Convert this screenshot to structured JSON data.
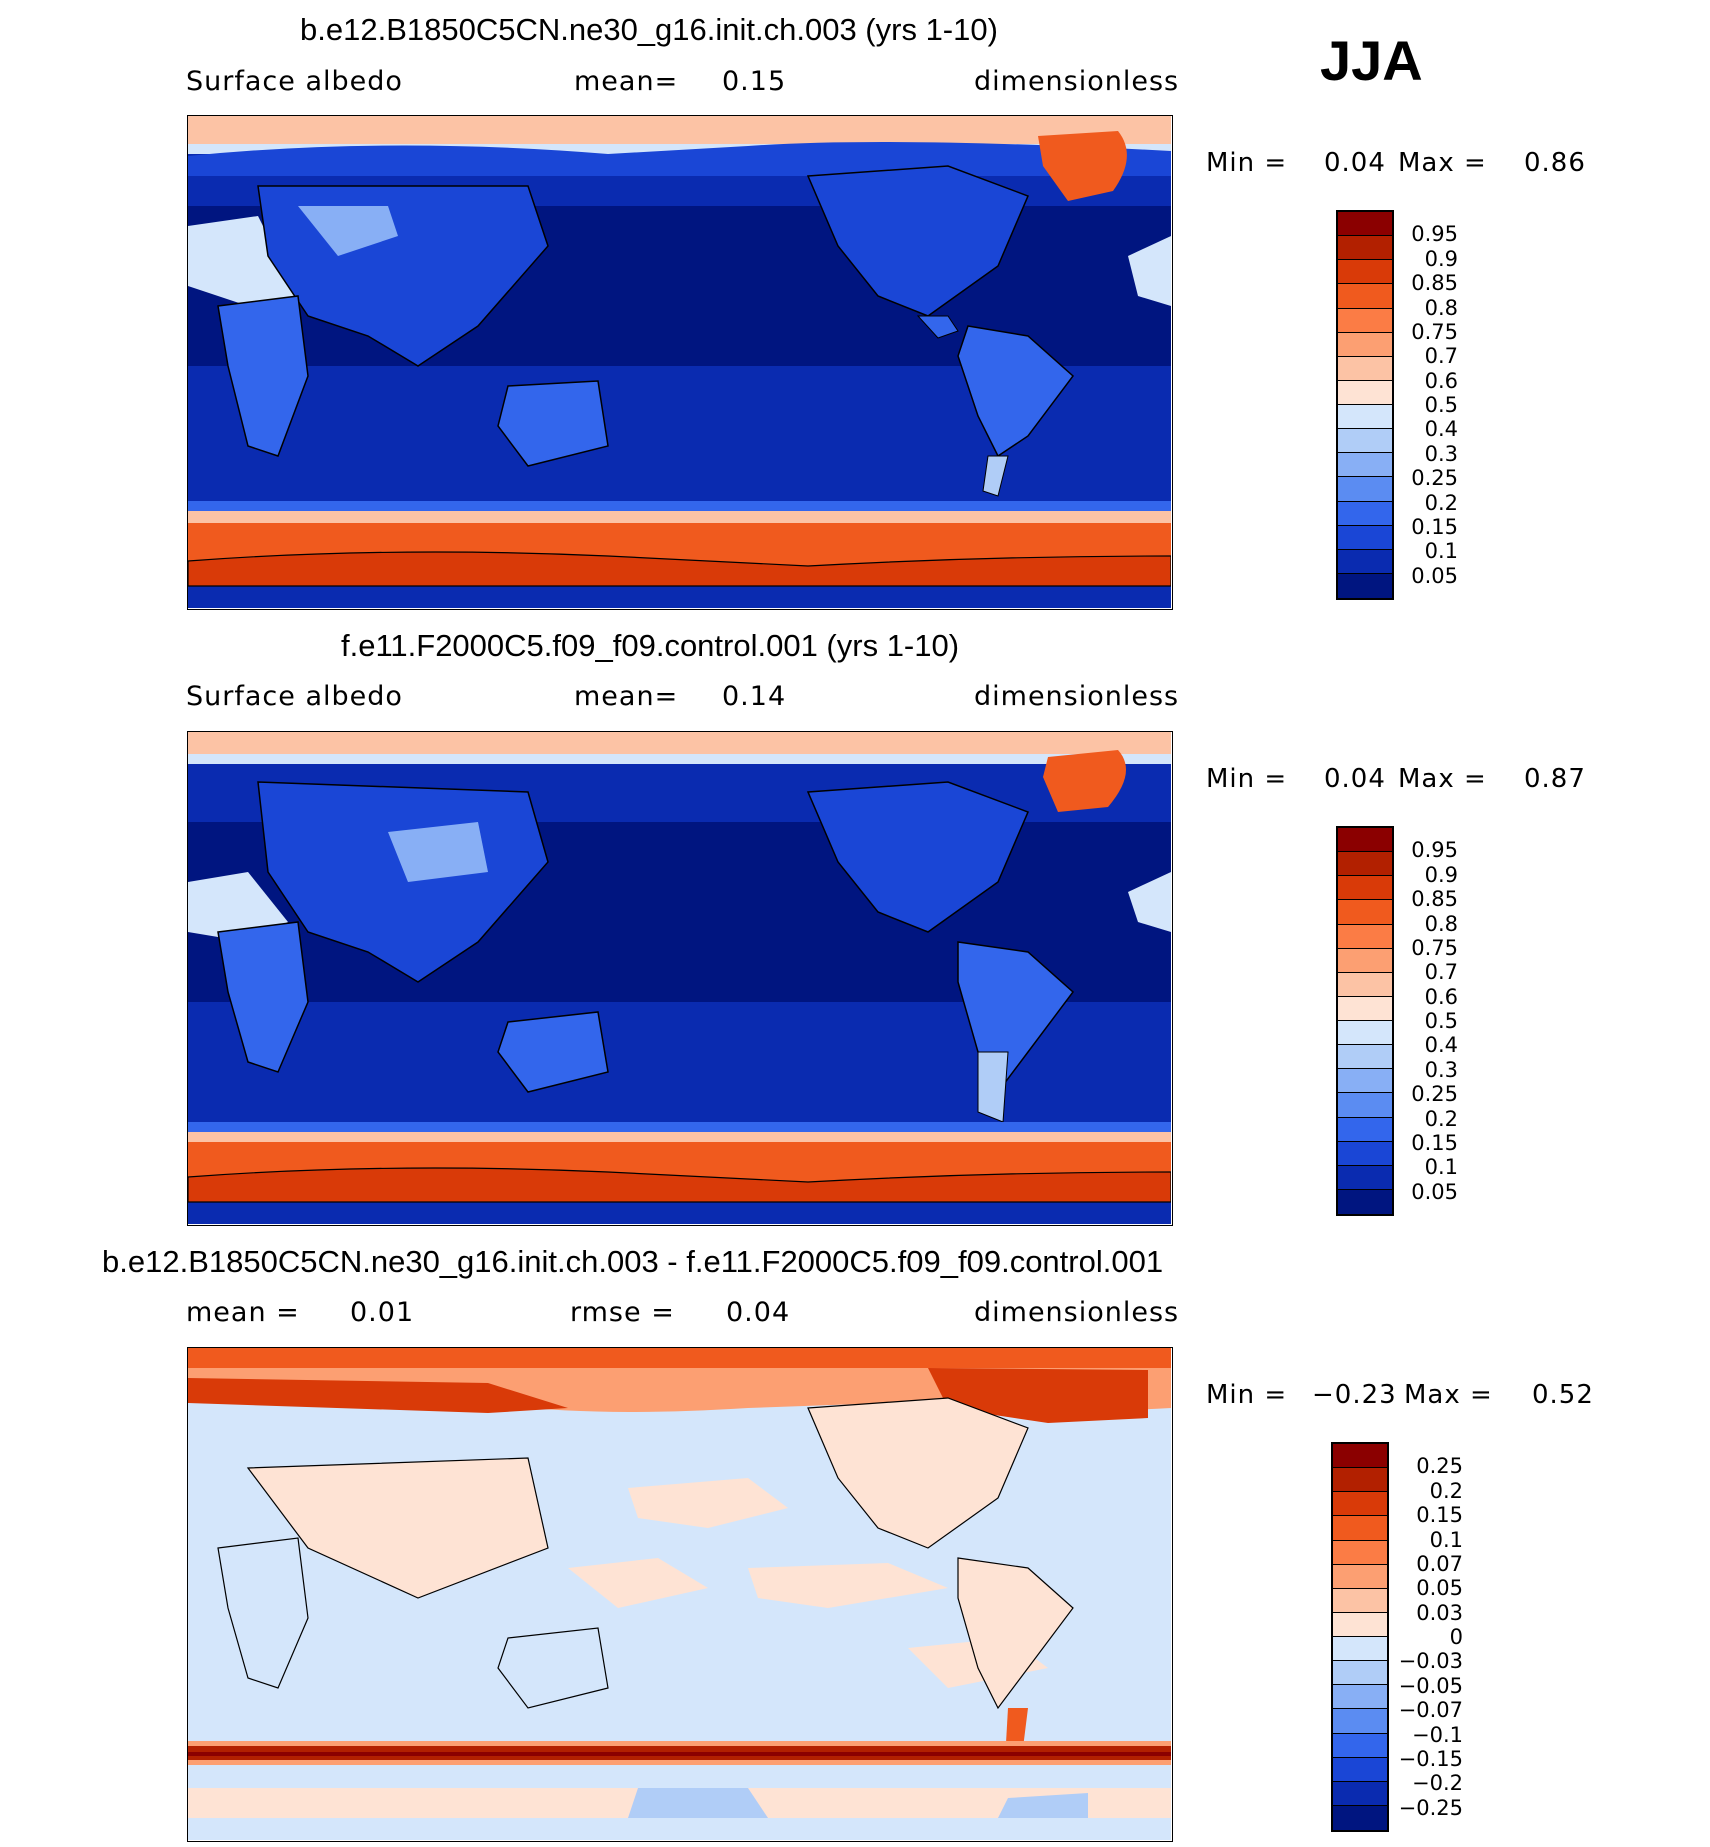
{
  "season": "JJA",
  "panels": [
    {
      "id": "p1",
      "title": "b.e12.B1850C5CN.ne30_g16.init.ch.003 (yrs 1-10)",
      "sub_left": "Surface albedo",
      "sub_mid_label": "mean=",
      "sub_mid_value": "0.15",
      "sub_right": "dimensionless",
      "min_label": "Min =",
      "min_value": "0.04",
      "max_label": "Max =",
      "max_value": "0.86",
      "levels": [
        "0.95",
        "0.9",
        "0.85",
        "0.8",
        "0.75",
        "0.7",
        "0.6",
        "0.5",
        "0.4",
        "0.3",
        "0.25",
        "0.2",
        "0.15",
        "0.1",
        "0.05"
      ],
      "colors": [
        "#8b0000",
        "#b22000",
        "#d93a08",
        "#f05a1e",
        "#fb7c45",
        "#fc9f72",
        "#fcc3a5",
        "#fee3d4",
        "#d4e6fb",
        "#b0cdf7",
        "#88aff5",
        "#5b8cf2",
        "#3366ec",
        "#1a46d6",
        "#0a2bb0",
        "#001580"
      ]
    },
    {
      "id": "p2",
      "title": "f.e11.F2000C5.f09_f09.control.001 (yrs 1-10)",
      "sub_left": "Surface albedo",
      "sub_mid_label": "mean=",
      "sub_mid_value": "0.14",
      "sub_right": "dimensionless",
      "min_label": "Min =",
      "min_value": "0.04",
      "max_label": "Max =",
      "max_value": "0.87",
      "levels": [
        "0.95",
        "0.9",
        "0.85",
        "0.8",
        "0.75",
        "0.7",
        "0.6",
        "0.5",
        "0.4",
        "0.3",
        "0.25",
        "0.2",
        "0.15",
        "0.1",
        "0.05"
      ],
      "colors": [
        "#8b0000",
        "#b22000",
        "#d93a08",
        "#f05a1e",
        "#fb7c45",
        "#fc9f72",
        "#fcc3a5",
        "#fee3d4",
        "#d4e6fb",
        "#b0cdf7",
        "#88aff5",
        "#5b8cf2",
        "#3366ec",
        "#1a46d6",
        "#0a2bb0",
        "#001580"
      ]
    },
    {
      "id": "p3",
      "title": "b.e12.B1850C5CN.ne30_g16.init.ch.003 - f.e11.F2000C5.f09_f09.control.001",
      "sub_left": "mean =",
      "sub_left_value": "0.01",
      "sub_mid_label": "rmse =",
      "sub_mid_value": "0.04",
      "sub_right": "dimensionless",
      "min_label": "Min =",
      "min_value": "−0.23",
      "max_label": "Max =",
      "max_value": "0.52",
      "levels": [
        "0.25",
        "0.2",
        "0.15",
        "0.1",
        "0.07",
        "0.05",
        "0.03",
        "0",
        "−0.03",
        "−0.05",
        "−0.07",
        "−0.1",
        "−0.15",
        "−0.2",
        "−0.25"
      ],
      "colors": [
        "#8b0000",
        "#b22000",
        "#d93a08",
        "#f05a1e",
        "#fb7c45",
        "#fc9f72",
        "#fcc3a5",
        "#fee3d4",
        "#d4e6fb",
        "#b0cdf7",
        "#88aff5",
        "#5b8cf2",
        "#3366ec",
        "#1a46d6",
        "#0a2bb0",
        "#001580"
      ]
    }
  ]
}
